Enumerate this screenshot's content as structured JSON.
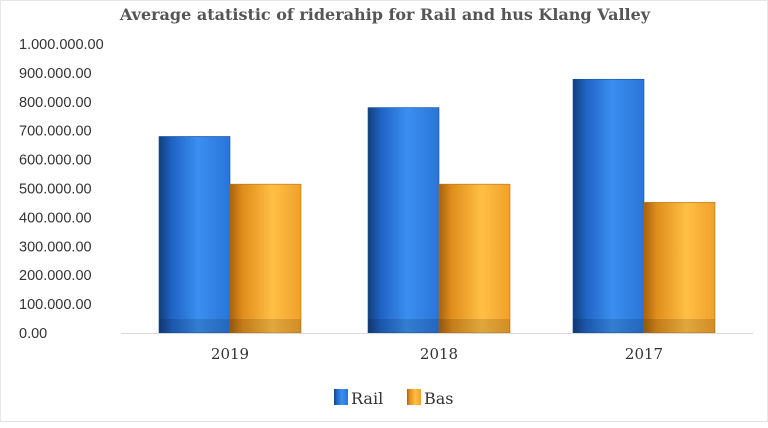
{
  "chart_data": {
    "type": "bar",
    "title": "Average atatistic of riderahip for Rail and hus   Klang Valley",
    "xlabel": "",
    "ylabel": "",
    "categories": [
      "2019",
      "2018",
      "2017"
    ],
    "series": [
      {
        "name": "Rail",
        "values": [
          680000,
          780000,
          878000
        ],
        "color": "#2e7ee6"
      },
      {
        "name": "Bas",
        "values": [
          515000,
          515000,
          452000
        ],
        "color": "#f5a623"
      }
    ],
    "ylim": [
      0,
      1000000
    ],
    "yticks": [
      "0.00",
      "100.000.00",
      "200.000.00",
      "300.000.00",
      "400.000.00",
      "500.000.00",
      "600.000.00",
      "700.000.00",
      "800.000.00",
      "900.000.00",
      "1.000.000.00"
    ],
    "legend_position": "bottom",
    "grid": false
  }
}
